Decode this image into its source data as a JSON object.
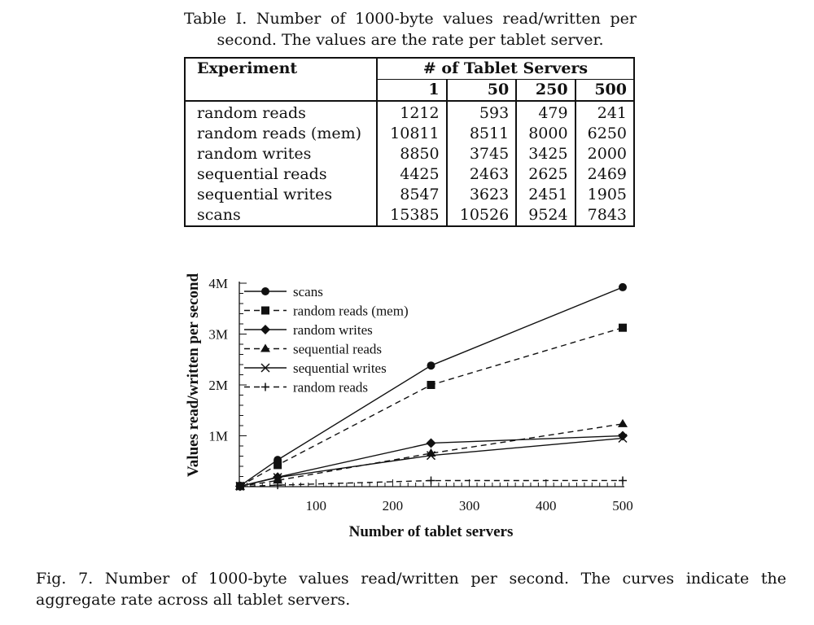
{
  "table": {
    "caption": "Table I. Number of 1000-byte values read/written per second. The values are the rate per tablet server.",
    "header_experiment": "Experiment",
    "header_group": "# of Tablet Servers",
    "columns": [
      "1",
      "50",
      "250",
      "500"
    ],
    "rows": [
      {
        "name": "random reads",
        "values": [
          "1212",
          "593",
          "479",
          "241"
        ]
      },
      {
        "name": "random reads (mem)",
        "values": [
          "10811",
          "8511",
          "8000",
          "6250"
        ]
      },
      {
        "name": "random writes",
        "values": [
          "8850",
          "3745",
          "3425",
          "2000"
        ]
      },
      {
        "name": "sequential reads",
        "values": [
          "4425",
          "2463",
          "2625",
          "2469"
        ]
      },
      {
        "name": "sequential writes",
        "values": [
          "8547",
          "3623",
          "2451",
          "1905"
        ]
      },
      {
        "name": "scans",
        "values": [
          "15385",
          "10526",
          "9524",
          "7843"
        ]
      }
    ]
  },
  "chart_data": {
    "type": "line",
    "xlabel": "Number of tablet servers",
    "ylabel": "Values read/written per second",
    "x": [
      1,
      50,
      250,
      500
    ],
    "xlim": [
      0,
      500
    ],
    "ylim": [
      0,
      4000000
    ],
    "xticks": [
      100,
      200,
      300,
      400,
      500
    ],
    "yticks": [
      {
        "value": 1000000,
        "label": "1M"
      },
      {
        "value": 2000000,
        "label": "2M"
      },
      {
        "value": 3000000,
        "label": "3M"
      },
      {
        "value": 4000000,
        "label": "4M"
      }
    ],
    "legend_position": "top-left",
    "series": [
      {
        "name": "scans",
        "marker": "circle",
        "dash": "solid",
        "values": [
          15385,
          526300,
          2381000,
          3921500
        ]
      },
      {
        "name": "random reads (mem)",
        "marker": "square",
        "dash": "dashed",
        "values": [
          10811,
          425550,
          2000000,
          3125000
        ]
      },
      {
        "name": "random writes",
        "marker": "diamond",
        "dash": "solid",
        "values": [
          8850,
          187250,
          856250,
          1000000
        ]
      },
      {
        "name": "sequential reads",
        "marker": "triangle",
        "dash": "dashed",
        "values": [
          4425,
          123150,
          656250,
          1234500
        ]
      },
      {
        "name": "sequential writes",
        "marker": "x",
        "dash": "solid",
        "values": [
          8547,
          181150,
          612750,
          952500
        ]
      },
      {
        "name": "random reads",
        "marker": "plus",
        "dash": "dashed",
        "values": [
          1212,
          29650,
          119750,
          120500
        ]
      }
    ]
  },
  "figure": {
    "caption": "Fig. 7.  Number of 1000-byte values read/written per second. The curves indicate the aggregate rate across all tablet servers."
  }
}
